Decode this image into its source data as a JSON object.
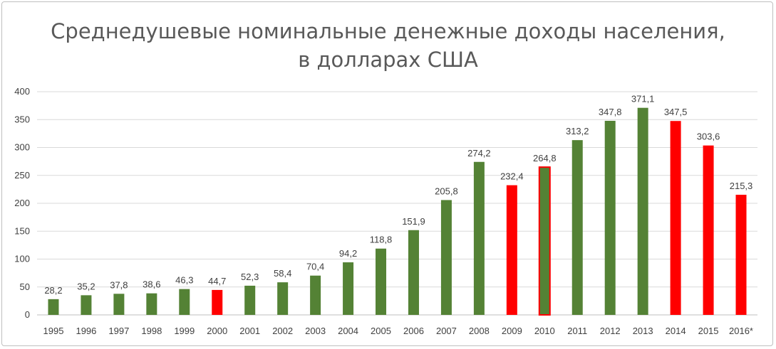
{
  "chart_data": {
    "type": "bar",
    "title_line1": "Среднедушевые номинальные денежные доходы населения,",
    "title_line2": "в долларах США",
    "xlabel": "",
    "ylabel": "",
    "ylim": [
      0,
      400
    ],
    "yticks": [
      0,
      50,
      100,
      150,
      200,
      250,
      300,
      350,
      400
    ],
    "grid": true,
    "legend": "none",
    "categories": [
      "1995",
      "1996",
      "1997",
      "1998",
      "1999",
      "2000",
      "2001",
      "2002",
      "2003",
      "2004",
      "2005",
      "2006",
      "2007",
      "2008",
      "2009",
      "2010",
      "2011",
      "2012",
      "2013",
      "2014",
      "2015",
      "2016*"
    ],
    "values": [
      28.2,
      35.2,
      37.8,
      38.6,
      46.3,
      44.7,
      52.3,
      58.4,
      70.4,
      94.2,
      118.8,
      151.9,
      205.8,
      274.2,
      232.4,
      264.8,
      313.2,
      347.8,
      371.1,
      347.5,
      303.6,
      215.3
    ],
    "value_labels": [
      "28,2",
      "35,2",
      "37,8",
      "38,6",
      "46,3",
      "44,7",
      "52,3",
      "58,4",
      "70,4",
      "94,2",
      "118,8",
      "151,9",
      "205,8",
      "274,2",
      "232,4",
      "264,8",
      "313,2",
      "347,8",
      "371,1",
      "347,5",
      "303,6",
      "215,3"
    ],
    "bar_colors": [
      "green",
      "green",
      "green",
      "green",
      "green",
      "red",
      "green",
      "green",
      "green",
      "green",
      "green",
      "green",
      "green",
      "green",
      "red",
      "red-outline-green",
      "green",
      "green",
      "green",
      "red",
      "red",
      "red"
    ],
    "colors": {
      "green": "#548235",
      "red": "#ff0000",
      "grid": "#d9d9d9",
      "axis": "#bfbfbf"
    }
  }
}
